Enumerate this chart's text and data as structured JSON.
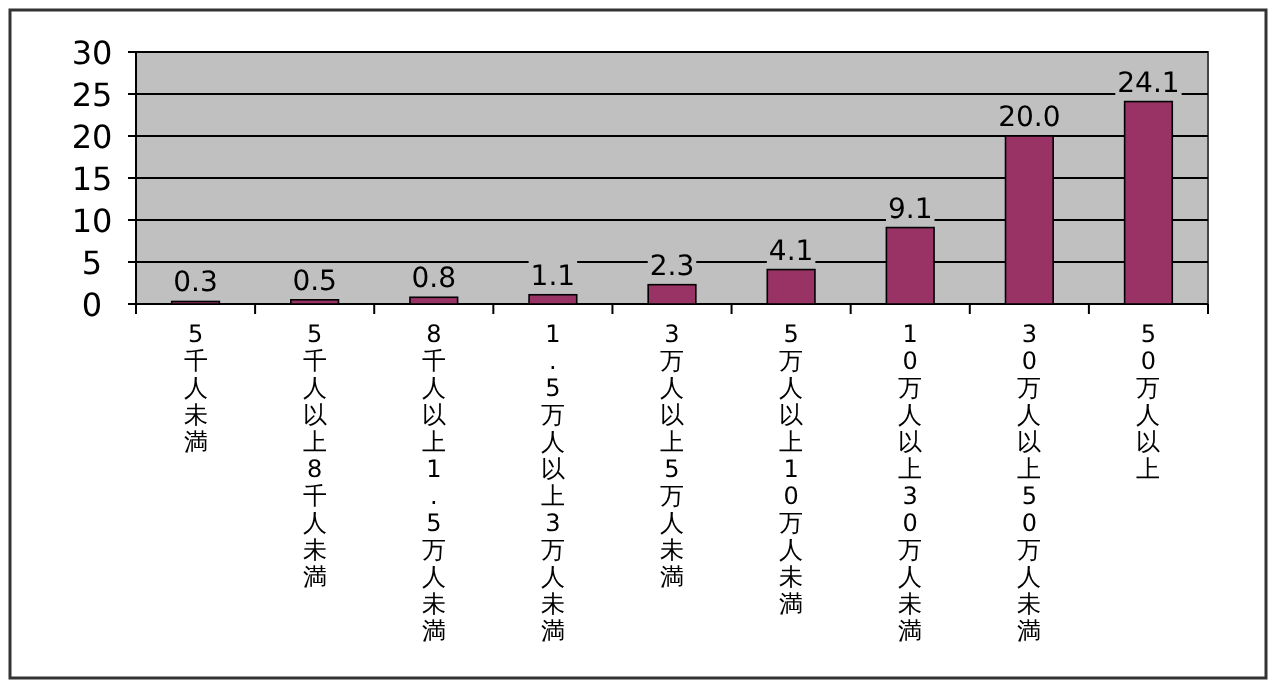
{
  "chart_data": {
    "type": "bar",
    "categories": [
      "5千人未満",
      "5千人以上8千人未満",
      "8千人以上1.5万人未満",
      "1.5万人以上3万人未満",
      "3万人以上5万人未満",
      "5万人以上10万人未満",
      "10万人以上30万人未満",
      "30万人以上50万人未満",
      "50万人以上"
    ],
    "values": [
      0.3,
      0.5,
      0.8,
      1.1,
      2.3,
      4.1,
      9.1,
      20.0,
      24.1
    ],
    "value_labels": [
      "0.3",
      "0.5",
      "0.8",
      "1.1",
      "2.3",
      "4.1",
      "9.1",
      "20.0",
      "24.1"
    ],
    "color": "#993366",
    "ylim": [
      0,
      30
    ],
    "yticks": [
      0,
      5,
      10,
      15,
      20,
      25,
      30
    ],
    "grid": "y"
  }
}
